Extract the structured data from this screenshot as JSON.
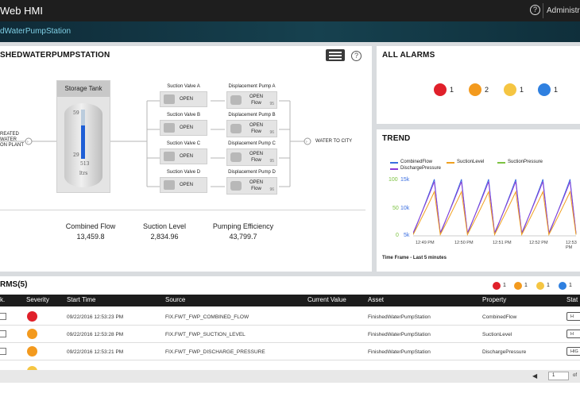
{
  "app": {
    "title": "Web HMI",
    "user": "Administra",
    "help": "?"
  },
  "breadcrumb": "dWaterPumpStation",
  "process": {
    "title": "SHEDWATERPUMPSTATION",
    "info": "?",
    "tank": {
      "title": "Storage Tank",
      "top": "59",
      "mid": "29",
      "value": "513",
      "unit": "ltrs",
      "level_pct": 68
    },
    "source_label": [
      "REATED",
      "WATER",
      "ON PLANT"
    ],
    "dest_label": "WATER TO CITY",
    "valves": [
      {
        "name": "Suction Valve A",
        "state": "OPEN"
      },
      {
        "name": "Suction Valve B",
        "state": "OPEN"
      },
      {
        "name": "Suction Valve C",
        "state": "OPEN"
      },
      {
        "name": "Suction Valve D",
        "state": "OPEN"
      }
    ],
    "pumps": [
      {
        "name": "Displacement Pump A",
        "state": "OPEN",
        "sub": "Flow",
        "num": "95"
      },
      {
        "name": "Displacement Pump B",
        "state": "OPEN",
        "sub": "Flow",
        "num": "96"
      },
      {
        "name": "Displacement Pump C",
        "state": "OPEN",
        "sub": "Flow",
        "num": "95"
      },
      {
        "name": "Displacement Pump D",
        "state": "OPEN",
        "sub": "Flow",
        "num": "96"
      }
    ],
    "metrics": [
      {
        "label": "Combined Flow",
        "value": "13,459.8"
      },
      {
        "label": "Suction Level",
        "value": "2,834.96"
      },
      {
        "label": "Pumping Efficiency",
        "value": "43,799.7"
      }
    ]
  },
  "alarms_summary": {
    "title": "ALL ALARMS",
    "items": [
      {
        "count": "1",
        "color": "#e0202a"
      },
      {
        "count": "2",
        "color": "#f39a1e"
      },
      {
        "count": "1",
        "color": "#f5c542"
      },
      {
        "count": "1",
        "color": "#2f80e0"
      }
    ]
  },
  "trend": {
    "title": "TREND",
    "legend": [
      {
        "name": "CombinedFlow",
        "color": "#3a6ee0"
      },
      {
        "name": "SuctionLevel",
        "color": "#f0a020"
      },
      {
        "name": "SuctionPressure",
        "color": "#7cc241"
      },
      {
        "name": "DischargePressure",
        "color": "#8a3ad8"
      }
    ],
    "y_left": [
      "100",
      "50",
      "0"
    ],
    "y_mid": [
      "15k",
      "10k",
      "5k"
    ],
    "x_ticks": [
      "12:49 PM",
      "12:50 PM",
      "12:51 PM",
      "12:52 PM",
      "12:53 PM"
    ],
    "time_frame": "Time Frame - Last 5 minutes"
  },
  "alarm_table": {
    "title": "RMS(5)",
    "mini": [
      {
        "count": "1",
        "color": "#e0202a"
      },
      {
        "count": "1",
        "color": "#f39a1e"
      },
      {
        "count": "1",
        "color": "#f5c542"
      },
      {
        "count": "1",
        "color": "#2f80e0"
      }
    ],
    "columns": [
      "k.",
      "Severity",
      "Start Time",
      "Source",
      "Current Value",
      "Asset",
      "Property",
      "Stat"
    ],
    "rows": [
      {
        "color": "#e0202a",
        "time": "09/22/2016 12:53:23 PM",
        "source": "FIX.FWT_FWP_COMBINED_FLOW",
        "asset": "FinishedWaterPumpStation",
        "property": "CombinedFlow",
        "status": "H"
      },
      {
        "color": "#f39a1e",
        "time": "09/22/2016 12:53:28 PM",
        "source": "FIX.FWT_FWP_SUCTION_LEVEL",
        "asset": "FinishedWaterPumpStation",
        "property": "SuctionLevel",
        "status": "H"
      },
      {
        "color": "#f39a1e",
        "time": "09/22/2016 12:53:21 PM",
        "source": "FIX.FWT_FWP_DISCHARGE_PRESSURE",
        "asset": "FinishedWaterPumpStation",
        "property": "DischargePressure",
        "status": "HIG"
      }
    ],
    "pager": {
      "prev": "◀",
      "page": "1",
      "of": "of"
    }
  }
}
